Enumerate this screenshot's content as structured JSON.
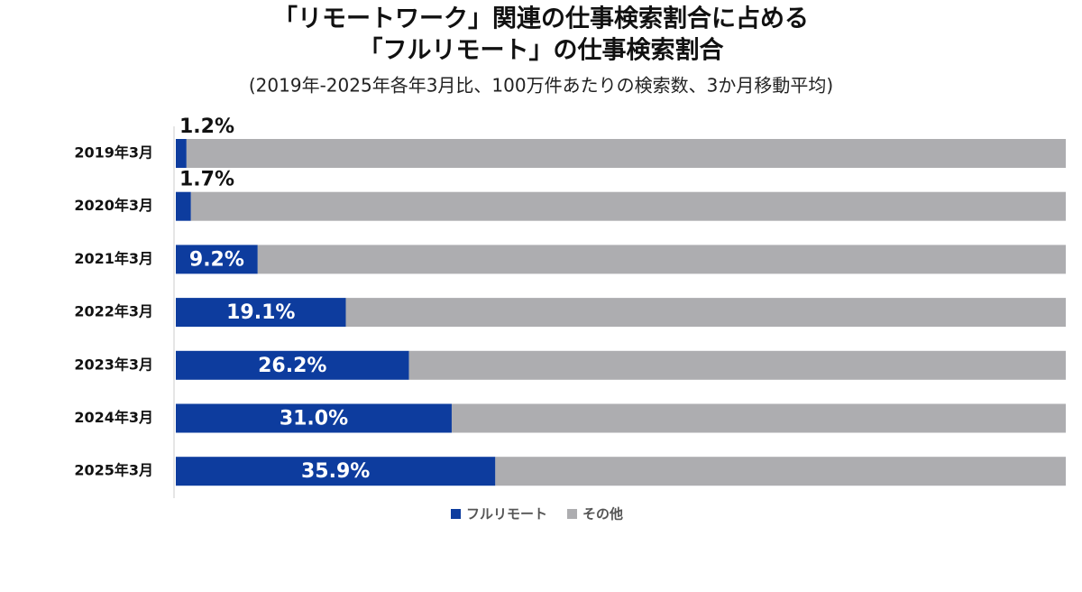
{
  "chart_data": {
    "type": "stacked-bar-horizontal",
    "title": [
      "「リモートワーク」関連の仕事検索割合に占める",
      "「フルリモート」の仕事検索割合"
    ],
    "subtitle": "(2019年-2025年各年3月比、100万件あたりの検索数、3か月移動平均)",
    "categories": [
      "2019年3月",
      "2020年3月",
      "2021年3月",
      "2022年3月",
      "2023年3月",
      "2024年3月",
      "2025年3月"
    ],
    "series": [
      {
        "name": "フルリモート",
        "color": "#0d3c9e",
        "values": [
          1.2,
          1.7,
          9.2,
          19.1,
          26.2,
          31.0,
          35.9
        ],
        "value_labels": [
          "1.2%",
          "1.7%",
          "9.2%",
          "19.1%",
          "26.2%",
          "31.0%",
          "35.9%"
        ]
      },
      {
        "name": "その他",
        "color": "#adadb0",
        "values": [
          98.8,
          98.3,
          90.8,
          80.9,
          73.8,
          69.0,
          64.1
        ]
      }
    ],
    "xlim": [
      0,
      100
    ],
    "legend": "bottom"
  }
}
